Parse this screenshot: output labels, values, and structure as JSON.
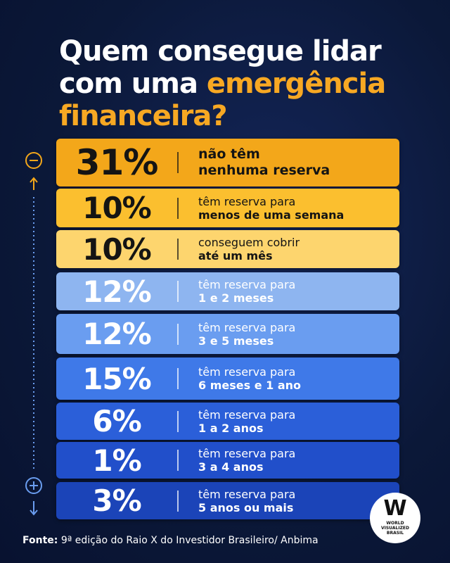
{
  "title": {
    "line1": "Quem consegue lidar",
    "line2_plain": "com uma",
    "line2_highlight": "emergência",
    "line3_highlight": "financeira?"
  },
  "rows": [
    {
      "value": "31%",
      "line1": "não têm",
      "line2": "nenhuma reserva",
      "color": "#f3a71a",
      "text_color": "#141414",
      "bold_first": true
    },
    {
      "value": "10%",
      "line1": "têm reserva para",
      "line2": "menos de uma semana",
      "color": "#fbbf2f",
      "text_color": "#141414"
    },
    {
      "value": "10%",
      "line1": "conseguem cobrir",
      "line2": "até um mês",
      "color": "#fdd56e",
      "text_color": "#141414"
    },
    {
      "value": "12%",
      "line1": "têm reserva para",
      "line2": "1 e 2 meses",
      "color": "#8eb5f0",
      "text_color": "#ffffff"
    },
    {
      "value": "12%",
      "line1": "têm reserva para",
      "line2": "3 e 5 meses",
      "color": "#6a9df0",
      "text_color": "#ffffff"
    },
    {
      "value": "15%",
      "line1": "têm reserva para",
      "line2": "6 meses e 1 ano",
      "color": "#3f79e8",
      "text_color": "#ffffff"
    },
    {
      "value": "6%",
      "line1": "têm reserva para",
      "line2": "1 a 2 anos",
      "color": "#2b5fd9",
      "text_color": "#ffffff"
    },
    {
      "value": "1%",
      "line1": "têm reserva para",
      "line2": "3 a 4 anos",
      "color": "#214fca",
      "text_color": "#ffffff"
    },
    {
      "value": "3%",
      "line1": "têm reserva para",
      "line2": "5 anos ou mais",
      "color": "#1b44b8",
      "text_color": "#ffffff"
    }
  ],
  "footer": {
    "label": "Fonte:",
    "text": "9ª edição do Raio X do Investidor Brasileiro/ Anbima"
  },
  "logo": {
    "line1": "WORLD",
    "line2": "VISUALIZED",
    "line3": "BRASIL"
  }
}
